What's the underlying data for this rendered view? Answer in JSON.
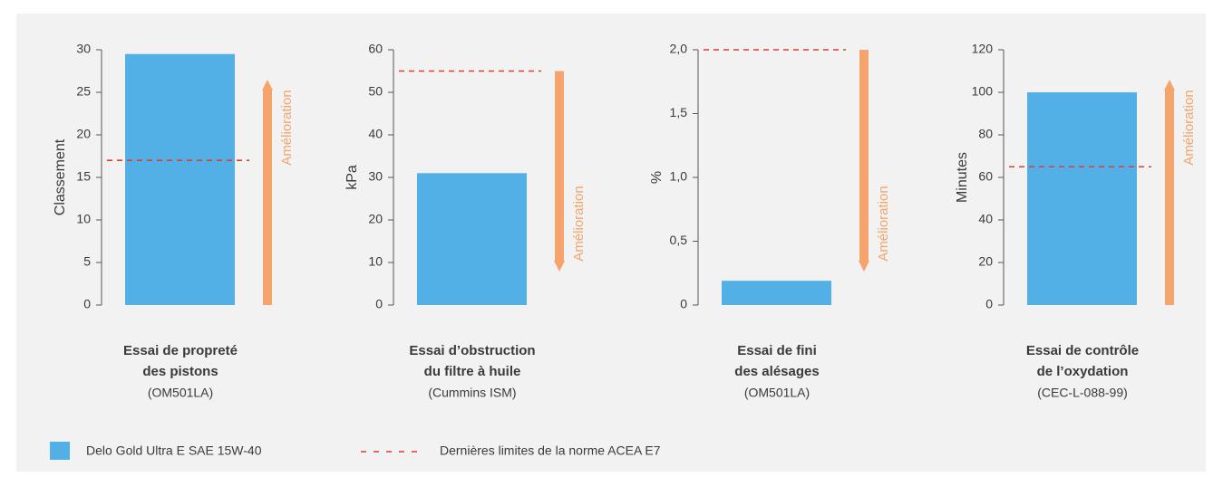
{
  "chart_data": [
    {
      "type": "bar",
      "title": [
        "Essai de propreté",
        "des pistons"
      ],
      "subtitle": "(OM501LA)",
      "ylabel": "Classement",
      "values": [
        29.5
      ],
      "color": "#52b0e6",
      "limit": 17,
      "limit_color": "#e03c31",
      "annotation": "Amélioration",
      "arrow": "up",
      "arrow_color": "#f4a46c",
      "ylim": [
        0,
        30
      ],
      "yticks": [
        0,
        5,
        10,
        15,
        20,
        25,
        30
      ]
    },
    {
      "type": "bar",
      "title": [
        "Essai d’obstruction",
        "du filtre à huile"
      ],
      "subtitle": "(Cummins ISM)",
      "ylabel": "kPa",
      "values": [
        31
      ],
      "color": "#52b0e6",
      "limit": 55,
      "limit_color": "#e03c31",
      "annotation": "Amélioration",
      "arrow": "down",
      "arrow_color": "#f4a46c",
      "ylim": [
        0,
        60
      ],
      "yticks": [
        0,
        10,
        20,
        30,
        40,
        50,
        60
      ]
    },
    {
      "type": "bar",
      "title": [
        "Essai de fini",
        "des alésages"
      ],
      "subtitle": "(OM501LA)",
      "ylabel": "%",
      "values": [
        0.19
      ],
      "color": "#52b0e6",
      "limit": 2.0,
      "limit_color": "#e03c31",
      "annotation": "Amélioration",
      "arrow": "down",
      "arrow_color": "#f4a46c",
      "ylim": [
        0,
        2
      ],
      "yticks": [
        0,
        {
          "value": 0.5,
          "label": "0,5"
        },
        {
          "value": 1,
          "label": "1,0"
        },
        {
          "value": 1.5,
          "label": "1,5"
        },
        {
          "value": 2,
          "label": "2,0"
        }
      ]
    },
    {
      "type": "bar",
      "title": [
        "Essai de contrôle",
        "de l’oxydation"
      ],
      "subtitle": "(CEC-L-088-99)",
      "ylabel": "Minutes",
      "values": [
        100
      ],
      "color": "#52b0e6",
      "limit": 65,
      "limit_color": "#e03c31",
      "annotation": "Amélioration",
      "arrow": "up",
      "arrow_color": "#f4a46c",
      "ylim": [
        0,
        120
      ],
      "yticks": [
        0,
        20,
        40,
        60,
        80,
        100,
        120
      ]
    }
  ],
  "legend": [
    {
      "name": "Delo Gold Ultra E SAE 15W-40",
      "color": "#52b0e6",
      "kind": "box"
    },
    {
      "name": "Dernières limites de la norme ACEA E7",
      "color": "#e03c31",
      "kind": "dashed"
    }
  ]
}
